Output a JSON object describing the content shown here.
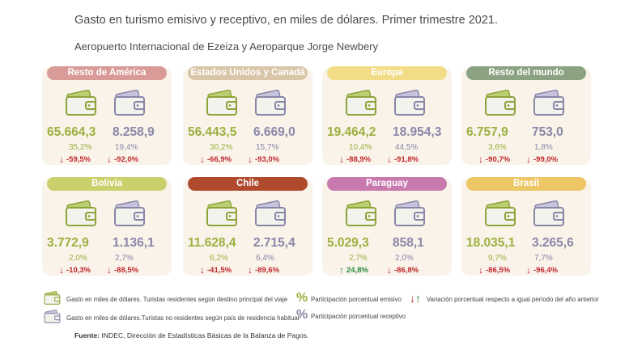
{
  "title": "Gasto en turismo emisivo y receptivo, en miles de dólares. Primer trimestre 2021.",
  "subtitle": "Aeropuerto Internacional de Ezeiza y Aeroparque Jorge Newbery",
  "colors": {
    "emisivo": "#9cb03f",
    "receptivo": "#8a86a8",
    "down": "#c0282d",
    "up": "#2a8a3e",
    "card_bg": "#f9f3ea"
  },
  "chart_data": {
    "type": "table",
    "regions": [
      {
        "name": "Resto de América",
        "color": "#d99b98",
        "emisivo": "65.664,3",
        "receptivo": "8.258,9",
        "pct_emisivo": "35,2%",
        "pct_receptivo": "19,4%",
        "var_emisivo": "-59,5%",
        "var_receptivo": "-92,0%",
        "dir_emisivo": "down",
        "dir_receptivo": "down"
      },
      {
        "name": "Estados Unidos y Canadá",
        "color": "#d9c6a8",
        "emisivo": "56.443,5",
        "receptivo": "6.669,0",
        "pct_emisivo": "30,2%",
        "pct_receptivo": "15,7%",
        "var_emisivo": "-66,9%",
        "var_receptivo": "-93,0%",
        "dir_emisivo": "down",
        "dir_receptivo": "down"
      },
      {
        "name": "Europa",
        "color": "#f3dc88",
        "emisivo": "19.464,2",
        "receptivo": "18.954,3",
        "pct_emisivo": "10,4%",
        "pct_receptivo": "44,5%",
        "var_emisivo": "-88,9%",
        "var_receptivo": "-91,8%",
        "dir_emisivo": "down",
        "dir_receptivo": "down"
      },
      {
        "name": "Resto del mundo",
        "color": "#8ca383",
        "emisivo": "6.757,9",
        "receptivo": "753,0",
        "pct_emisivo": "3,6%",
        "pct_receptivo": "1,8%",
        "var_emisivo": "-90,7%",
        "var_receptivo": "-99,0%",
        "dir_emisivo": "down",
        "dir_receptivo": "down"
      },
      {
        "name": "Bolivia",
        "color": "#cbcf6c",
        "emisivo": "3.772,9",
        "receptivo": "1.136,1",
        "pct_emisivo": "2,0%",
        "pct_receptivo": "2,7%",
        "var_emisivo": "-10,3%",
        "var_receptivo": "-88,5%",
        "dir_emisivo": "down",
        "dir_receptivo": "down"
      },
      {
        "name": "Chile",
        "color": "#b04a2d",
        "emisivo": "11.628,4",
        "receptivo": "2.715,4",
        "pct_emisivo": "6,2%",
        "pct_receptivo": "6,4%",
        "var_emisivo": "-41,5%",
        "var_receptivo": "-89,6%",
        "dir_emisivo": "down",
        "dir_receptivo": "down"
      },
      {
        "name": "Paraguay",
        "color": "#c879ad",
        "emisivo": "5.029,3",
        "receptivo": "858,1",
        "pct_emisivo": "2,7%",
        "pct_receptivo": "2,0%",
        "var_emisivo": "24,8%",
        "var_receptivo": "-86,8%",
        "dir_emisivo": "up",
        "dir_receptivo": "down"
      },
      {
        "name": "Brasil",
        "color": "#edc666",
        "emisivo": "18.035,1",
        "receptivo": "3.265,6",
        "pct_emisivo": "9,7%",
        "pct_receptivo": "7,7%",
        "var_emisivo": "-86,5%",
        "var_receptivo": "-96,4%",
        "dir_emisivo": "down",
        "dir_receptivo": "down"
      }
    ]
  },
  "legend": {
    "emisivo_text": "Gasto en miles de dólares. Turistas residentes según destino principal del viaje",
    "receptivo_text": "Gasto en miles de dólares.Turistas no residentes según país de residencia habitual",
    "pct_symbol": "%",
    "pct_emisivo_text": "Participación porcentual emisivo",
    "pct_receptivo_text": "Participación porcentual receptivo",
    "variation_text": "Variación porcentual respecto a igual período del año anterior"
  },
  "source": {
    "label": "Fuente:",
    "text": " INDEC, Dirección de Estadísticas Básicas de la Balanza de Pagos."
  }
}
